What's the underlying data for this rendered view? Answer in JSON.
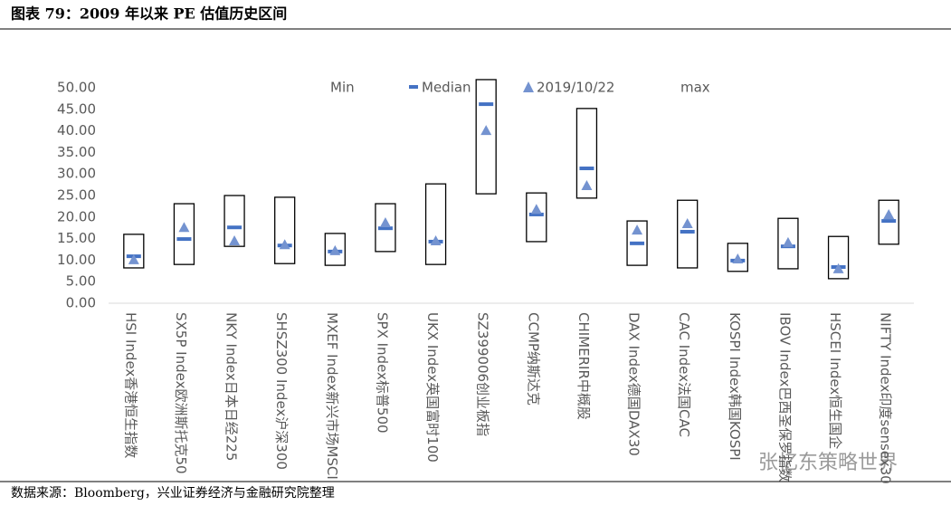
{
  "header": "图表 79：2009 年以来 PE 估值历史区间",
  "footer": "数据来源：Bloomberg，兴业证券经济与金融研究院整理",
  "watermark": "张忆东策略世界",
  "chart_data": {
    "type": "range",
    "categories": [
      "HSI Index香港恒生指数",
      "SX5P Index欧洲斯托克50",
      "NKY Index日本日经225",
      "SHSZ300 Index沪深300",
      "MXEF Index新兴市场MSCI",
      "SPX Index标普500",
      "UKX Index英国富时100",
      "SZ399006创业板指",
      "CCMP纳斯达克",
      "CHIMERIR中概股",
      "DAX Index德国DAX30",
      "CAC Index法国CAC",
      "KOSPI Index韩国KOSPI",
      "IBOV Index巴西圣保罗指数",
      "HSCEI Index恒生国企",
      "NIFTY Index印度sensex30"
    ],
    "series": [
      {
        "name": "Min",
        "color": "#ffffff",
        "values": [
          8.2,
          9.0,
          13.2,
          9.2,
          8.8,
          12.0,
          9.0,
          25.4,
          14.3,
          24.4,
          8.8,
          8.2,
          7.4,
          8.0,
          5.7,
          13.7
        ]
      },
      {
        "name": "Median",
        "color": "#4472c4",
        "values": [
          10.9,
          14.9,
          17.6,
          13.4,
          12.0,
          17.4,
          14.3,
          46.2,
          20.6,
          31.3,
          13.9,
          16.6,
          9.9,
          13.2,
          8.4,
          19.1
        ]
      },
      {
        "name": "2019/10/22",
        "color": "#7493d0",
        "values": [
          10.1,
          17.6,
          14.5,
          13.6,
          12.2,
          18.7,
          14.5,
          40.1,
          21.8,
          27.3,
          17.0,
          18.5,
          10.3,
          14.1,
          8.0,
          20.6
        ]
      },
      {
        "name": "max",
        "color": "#ffffff",
        "values": [
          16.0,
          23.1,
          25.0,
          24.6,
          16.2,
          23.1,
          27.7,
          51.9,
          25.6,
          45.2,
          19.1,
          23.9,
          13.9,
          19.7,
          15.5,
          23.9
        ]
      }
    ],
    "ylim": [
      0,
      50
    ],
    "yticks": [
      {
        "value": 0,
        "label": "0.00"
      },
      {
        "value": 5,
        "label": "5.00"
      },
      {
        "value": 10,
        "label": "10.00"
      },
      {
        "value": 15,
        "label": "15.00"
      },
      {
        "value": 20,
        "label": "20.00"
      },
      {
        "value": 25,
        "label": "25.00"
      },
      {
        "value": 30,
        "label": "30.00"
      },
      {
        "value": 35,
        "label": "35.00"
      },
      {
        "value": 40,
        "label": "40.00"
      },
      {
        "value": 45,
        "label": "45.00"
      },
      {
        "value": 50,
        "label": "50.00"
      }
    ],
    "grid": false,
    "legend": "top"
  }
}
